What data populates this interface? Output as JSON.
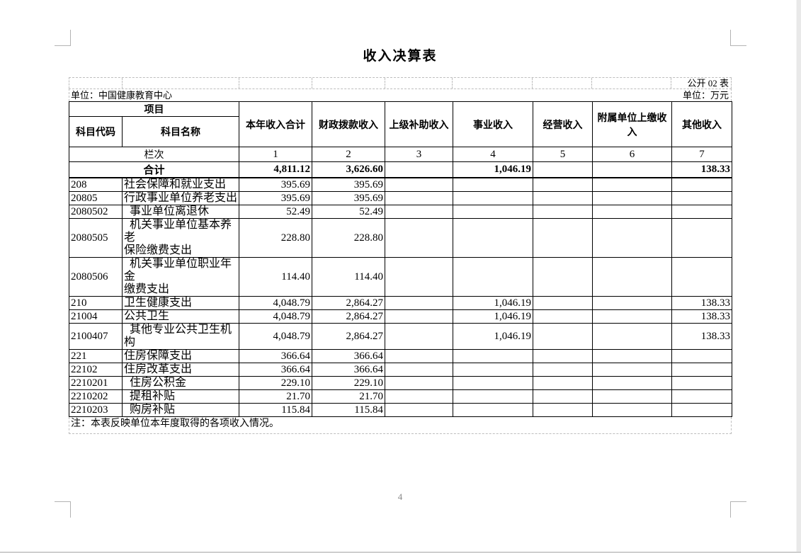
{
  "page": {
    "title": "收入决算表",
    "table_code": "公开 02 表",
    "unit_name": "单位：中国健康教育中心",
    "unit_measure": "单位：万元",
    "note": "注：本表反映单位本年度取得的各项收入情况。",
    "page_number": "4"
  },
  "table": {
    "header": {
      "project": "项目",
      "subject_code": "科目代码",
      "subject_name": "科目名称",
      "columns": [
        "本年收入合计",
        "财政拨款收入",
        "上级补助收入",
        "事业收入",
        "经营收入",
        "附属单位上缴收入",
        "其他收入"
      ],
      "lanci_label": "栏次",
      "column_numbers": [
        "1",
        "2",
        "3",
        "4",
        "5",
        "6",
        "7"
      ]
    },
    "total_row": {
      "label": "合计",
      "values": [
        "4,811.12",
        "3,626.60",
        "",
        "1,046.19",
        "",
        "",
        "138.33"
      ]
    },
    "rows": [
      {
        "code": "208",
        "name": "社会保障和就业支出",
        "values": [
          "395.69",
          "395.69",
          "",
          "",
          "",
          "",
          ""
        ]
      },
      {
        "code": "20805",
        "name": "行政事业单位养老支出",
        "values": [
          "395.69",
          "395.69",
          "",
          "",
          "",
          "",
          ""
        ]
      },
      {
        "code": "2080502",
        "name": "  事业单位离退休",
        "values": [
          "52.49",
          "52.49",
          "",
          "",
          "",
          "",
          ""
        ]
      },
      {
        "code": "2080505",
        "name": "  机关事业单位基本养老\n保险缴费支出",
        "values": [
          "228.80",
          "228.80",
          "",
          "",
          "",
          "",
          ""
        ]
      },
      {
        "code": "2080506",
        "name": "  机关事业单位职业年金\n缴费支出",
        "values": [
          "114.40",
          "114.40",
          "",
          "",
          "",
          "",
          ""
        ]
      },
      {
        "code": "210",
        "name": "卫生健康支出",
        "values": [
          "4,048.79",
          "2,864.27",
          "",
          "1,046.19",
          "",
          "",
          "138.33"
        ]
      },
      {
        "code": "21004",
        "name": "公共卫生",
        "values": [
          "4,048.79",
          "2,864.27",
          "",
          "1,046.19",
          "",
          "",
          "138.33"
        ]
      },
      {
        "code": "2100407",
        "name": "  其他专业公共卫生机构",
        "values": [
          "4,048.79",
          "2,864.27",
          "",
          "1,046.19",
          "",
          "",
          "138.33"
        ]
      },
      {
        "code": "221",
        "name": "住房保障支出",
        "values": [
          "366.64",
          "366.64",
          "",
          "",
          "",
          "",
          ""
        ]
      },
      {
        "code": "22102",
        "name": "住房改革支出",
        "values": [
          "366.64",
          "366.64",
          "",
          "",
          "",
          "",
          ""
        ]
      },
      {
        "code": "2210201",
        "name": "  住房公积金",
        "values": [
          "229.10",
          "229.10",
          "",
          "",
          "",
          "",
          ""
        ]
      },
      {
        "code": "2210202",
        "name": "  提租补贴",
        "values": [
          "21.70",
          "21.70",
          "",
          "",
          "",
          "",
          ""
        ]
      },
      {
        "code": "2210203",
        "name": "  购房补贴",
        "values": [
          "115.84",
          "115.84",
          "",
          "",
          "",
          "",
          ""
        ]
      }
    ]
  }
}
